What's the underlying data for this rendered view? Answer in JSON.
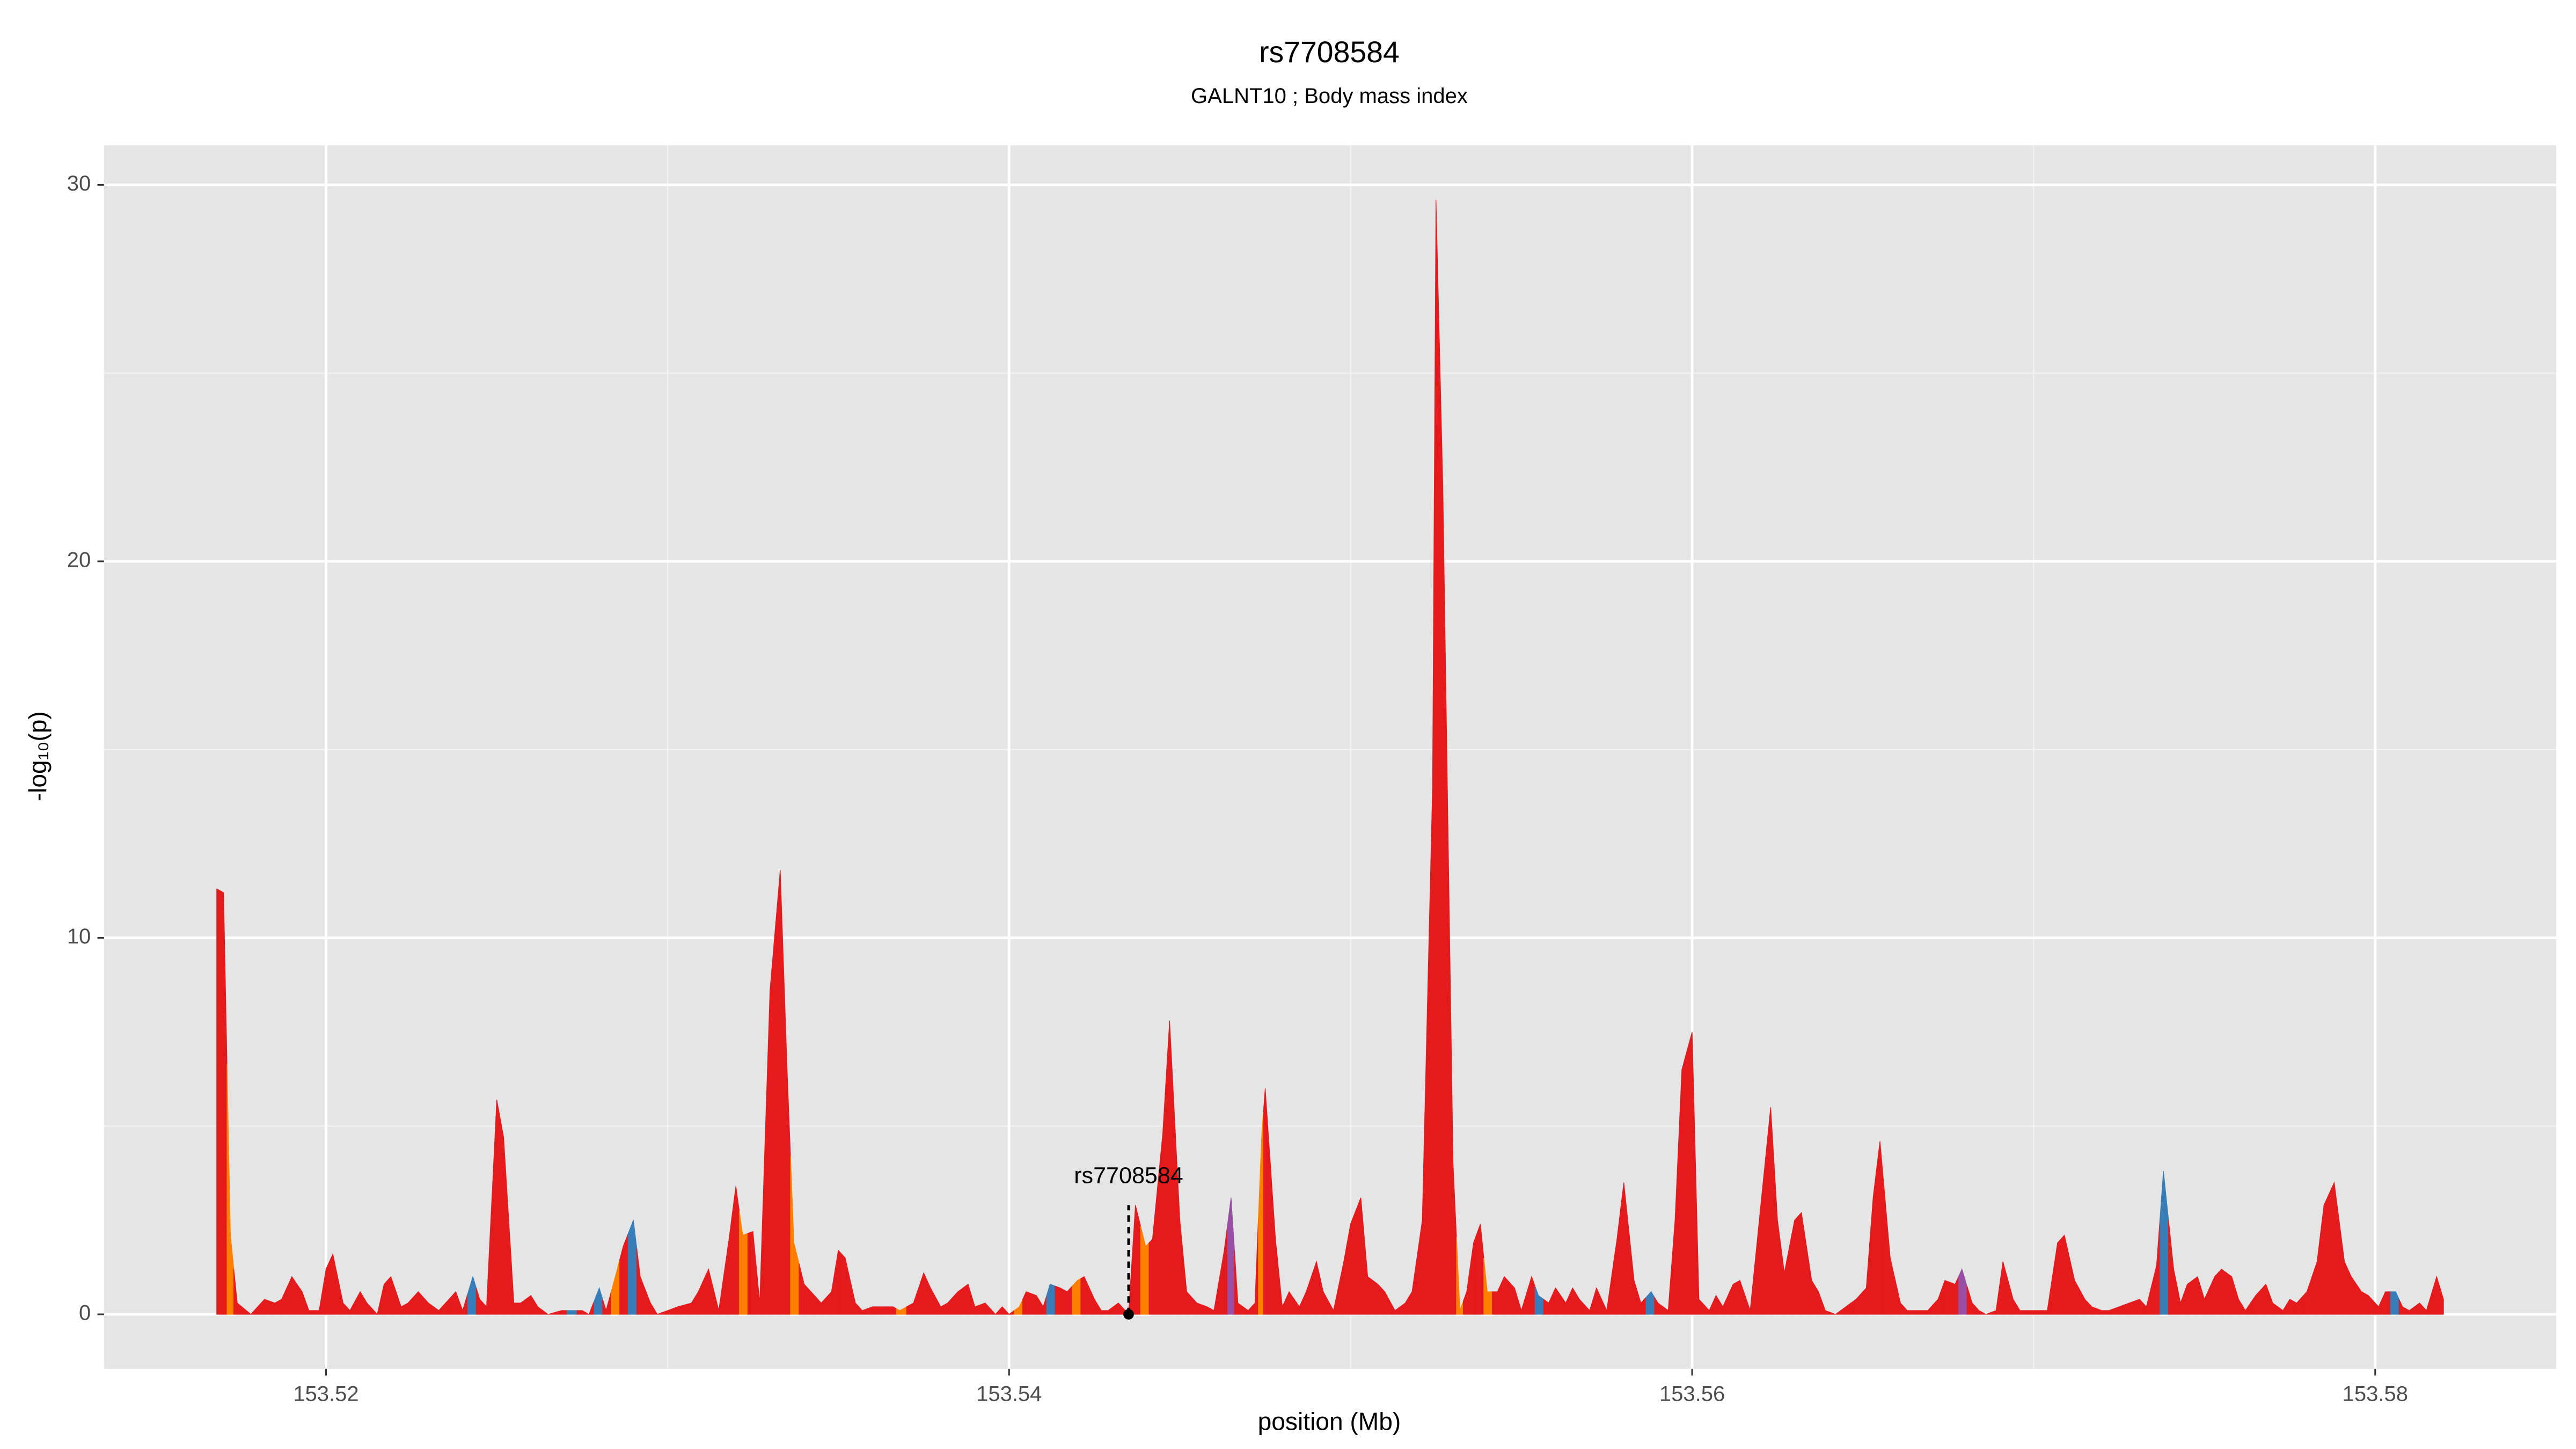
{
  "chart_data": {
    "type": "area",
    "title": "rs7708584",
    "subtitle": "GALNT10 ; Body mass index",
    "xlabel": "position (Mb)",
    "ylabel": "-log₁₀(p)",
    "xlim": [
      153.5135,
      153.5853
    ],
    "ylim": [
      -1.45,
      31.05
    ],
    "xticks": [
      153.52,
      153.54,
      153.56,
      153.58
    ],
    "yticks": [
      0,
      10,
      20,
      30
    ],
    "xminor": [
      153.53,
      153.55,
      153.57
    ],
    "yminor": [
      5,
      15,
      25
    ],
    "grid": true,
    "annotation": {
      "text": "rs7708584",
      "x": 153.5435,
      "y": 2.9
    },
    "x": [
      153.5168,
      153.517,
      153.5172,
      153.5174,
      153.5178,
      153.5182,
      153.5185,
      153.5187,
      153.519,
      153.5193,
      153.5195,
      153.5198,
      153.52,
      153.5202,
      153.5205,
      153.5207,
      153.521,
      153.5212,
      153.5215,
      153.5217,
      153.5219,
      153.5222,
      153.5224,
      153.5227,
      153.523,
      153.5233,
      153.5235,
      153.5238,
      153.524,
      153.5243,
      153.5245,
      153.5247,
      153.525,
      153.5252,
      153.5255,
      153.5257,
      153.526,
      153.5262,
      153.5265,
      153.5269,
      153.5272,
      153.5275,
      153.5277,
      153.528,
      153.5282,
      153.5285,
      153.5287,
      153.529,
      153.5292,
      153.5295,
      153.5297,
      153.53,
      153.5303,
      153.5307,
      153.5309,
      153.5312,
      153.5315,
      153.5318,
      153.532,
      153.5322,
      153.5325,
      153.5327,
      153.533,
      153.5333,
      153.5335,
      153.5337,
      153.534,
      153.5343,
      153.5345,
      153.5348,
      153.535,
      153.5352,
      153.5355,
      153.5357,
      153.536,
      153.5363,
      153.5366,
      153.5368,
      153.5372,
      153.5375,
      153.5377,
      153.538,
      153.5382,
      153.5385,
      153.5388,
      153.539,
      153.5393,
      153.5396,
      153.5398,
      153.54,
      153.5403,
      153.5405,
      153.5408,
      153.541,
      153.5412,
      153.5415,
      153.5417,
      153.542,
      153.5422,
      153.5425,
      153.5427,
      153.5429,
      153.5432,
      153.5435,
      153.5437,
      153.544,
      153.5442,
      153.5445,
      153.5447,
      153.545,
      153.5452,
      153.5455,
      153.5458,
      153.546,
      153.5463,
      153.5465,
      153.5467,
      153.547,
      153.5472,
      153.5474,
      153.5475,
      153.5478,
      153.548,
      153.5482,
      153.5485,
      153.5487,
      153.549,
      153.5492,
      153.5495,
      153.5498,
      153.55,
      153.5503,
      153.5505,
      153.5508,
      153.551,
      153.5513,
      153.5516,
      153.5518,
      153.5521,
      153.5524,
      153.5525,
      153.5527,
      153.553,
      153.5532,
      153.5534,
      153.5536,
      153.5538,
      153.554,
      153.5543,
      153.5545,
      153.5548,
      153.555,
      153.5553,
      153.5555,
      153.5558,
      153.556,
      153.5563,
      153.5565,
      153.5567,
      153.557,
      153.5572,
      153.5575,
      153.5578,
      153.558,
      153.5583,
      153.5585,
      153.5588,
      153.559,
      153.5593,
      153.5595,
      153.5597,
      153.56,
      153.5602,
      153.5605,
      153.5607,
      153.5609,
      153.5612,
      153.5614,
      153.5617,
      153.562,
      153.5623,
      153.5625,
      153.5627,
      153.563,
      153.5632,
      153.5635,
      153.5637,
      153.5639,
      153.5642,
      153.5645,
      153.5648,
      153.5651,
      153.5653,
      153.5655,
      153.5658,
      153.5661,
      153.5663,
      153.5666,
      153.5669,
      153.5672,
      153.5674,
      153.5677,
      153.5679,
      153.5682,
      153.5684,
      153.5686,
      153.5689,
      153.5691,
      153.5694,
      153.5696,
      153.5699,
      153.5701,
      153.5704,
      153.5707,
      153.5709,
      153.5712,
      153.5715,
      153.5717,
      153.572,
      153.5722,
      153.5725,
      153.5728,
      153.5731,
      153.5733,
      153.5736,
      153.5738,
      153.5741,
      153.5743,
      153.5745,
      153.5748,
      153.575,
      153.5753,
      153.5755,
      153.5758,
      153.576,
      153.5762,
      153.5765,
      153.5768,
      153.577,
      153.5773,
      153.5775,
      153.5777,
      153.578,
      153.5783,
      153.5785,
      153.5788,
      153.5791,
      153.5793,
      153.5796,
      153.5798,
      153.5801,
      153.5803,
      153.5806,
      153.5808,
      153.581,
      153.5813,
      153.5815,
      153.5818,
      153.582
    ],
    "values": [
      11.3,
      11.2,
      2.1,
      0.3,
      0,
      0.4,
      0.3,
      0.4,
      1.0,
      0.6,
      0.1,
      0.1,
      1.2,
      1.6,
      0.3,
      0.1,
      0.6,
      0.3,
      0,
      0.8,
      1.0,
      0.2,
      0.3,
      0.6,
      0.3,
      0.1,
      0.3,
      0.6,
      0.1,
      1.0,
      0.4,
      0.2,
      5.7,
      4.7,
      0.3,
      0.3,
      0.5,
      0.2,
      0,
      0.1,
      0.1,
      0.1,
      0,
      0.7,
      0.1,
      1.1,
      1.8,
      2.5,
      1.0,
      0.3,
      0,
      0.1,
      0.2,
      0.3,
      0.6,
      1.2,
      0.1,
      2.0,
      3.4,
      2.1,
      2.2,
      0.3,
      8.6,
      11.8,
      6.5,
      1.9,
      0.8,
      0.5,
      0.3,
      0.6,
      1.7,
      1.5,
      0.3,
      0.1,
      0.2,
      0.2,
      0.2,
      0.1,
      0.3,
      1.1,
      0.7,
      0.2,
      0.3,
      0.6,
      0.8,
      0.2,
      0.3,
      0,
      0.2,
      0,
      0.2,
      0.6,
      0.5,
      0.2,
      0.8,
      0.7,
      0.6,
      0.9,
      1.0,
      0.4,
      0.1,
      0.1,
      0.3,
      0,
      2.9,
      1.8,
      2.0,
      4.8,
      7.8,
      2.5,
      0.6,
      0.3,
      0.2,
      0.1,
      1.7,
      3.1,
      0.3,
      0.1,
      0.3,
      4.8,
      6.0,
      2.0,
      0.2,
      0.6,
      0.2,
      0.6,
      1.4,
      0.6,
      0.1,
      1.4,
      2.4,
      3.1,
      1.0,
      0.8,
      0.6,
      0.1,
      0.3,
      0.6,
      2.5,
      14,
      29.6,
      22,
      4.0,
      0.1,
      0.6,
      1.9,
      2.4,
      0.6,
      0.6,
      1.0,
      0.7,
      0.1,
      1.0,
      0.5,
      0.3,
      0.7,
      0.3,
      0.7,
      0.4,
      0.1,
      0.7,
      0.1,
      2.0,
      3.5,
      0.9,
      0.3,
      0.6,
      0.3,
      0.1,
      2.5,
      6.5,
      7.5,
      0.4,
      0.1,
      0.5,
      0.2,
      0.8,
      0.9,
      0.1,
      2.8,
      5.5,
      2.5,
      1.1,
      2.5,
      2.7,
      0.9,
      0.6,
      0.1,
      0,
      0.2,
      0.4,
      0.7,
      3.1,
      4.6,
      1.5,
      0.3,
      0.1,
      0.1,
      0.1,
      0.4,
      0.9,
      0.8,
      1.2,
      0.3,
      0.1,
      0,
      0.1,
      1.4,
      0.4,
      0.1,
      0.1,
      0.1,
      0.1,
      1.9,
      2.1,
      0.9,
      0.4,
      0.2,
      0.1,
      0.1,
      0.2,
      0.3,
      0.4,
      0.2,
      1.3,
      3.8,
      1.2,
      0.3,
      0.8,
      1.0,
      0.4,
      1.0,
      1.2,
      1.0,
      0.4,
      0.1,
      0.5,
      0.8,
      0.3,
      0.1,
      0.4,
      0.3,
      0.6,
      1.4,
      2.9,
      3.5,
      1.4,
      1.0,
      0.6,
      0.5,
      0.2,
      0.6,
      0.6,
      0.2,
      0.1,
      0.3,
      0.1,
      1.0,
      0.4
    ],
    "colors": [
      "#e41a1c",
      "#e41a1c",
      "#ff7f00",
      "#e41a1c",
      "#e41a1c",
      "#e41a1c",
      "#e41a1c",
      "#e41a1c",
      "#e41a1c",
      "#e41a1c",
      "#e41a1c",
      "#e41a1c",
      "#e41a1c",
      "#e41a1c",
      "#e41a1c",
      "#e41a1c",
      "#e41a1c",
      "#e41a1c",
      "#e41a1c",
      "#e41a1c",
      "#e41a1c",
      "#e41a1c",
      "#e41a1c",
      "#e41a1c",
      "#e41a1c",
      "#e41a1c",
      "#e41a1c",
      "#e41a1c",
      "#e41a1c",
      "#377eb8",
      "#e41a1c",
      "#e41a1c",
      "#e41a1c",
      "#e41a1c",
      "#e41a1c",
      "#e41a1c",
      "#e41a1c",
      "#e41a1c",
      "#e41a1c",
      "#e41a1c",
      "#377eb8",
      "#e41a1c",
      "#e41a1c",
      "#377eb8",
      "#e41a1c",
      "#ff7f00",
      "#e41a1c",
      "#377eb8",
      "#e41a1c",
      "#e41a1c",
      "#e41a1c",
      "#e41a1c",
      "#e41a1c",
      "#e41a1c",
      "#e41a1c",
      "#e41a1c",
      "#e41a1c",
      "#e41a1c",
      "#e41a1c",
      "#ff7f00",
      "#e41a1c",
      "#e41a1c",
      "#e41a1c",
      "#e41a1c",
      "#e41a1c",
      "#ff7f00",
      "#e41a1c",
      "#e41a1c",
      "#e41a1c",
      "#e41a1c",
      "#e41a1c",
      "#e41a1c",
      "#e41a1c",
      "#e41a1c",
      "#e41a1c",
      "#e41a1c",
      "#e41a1c",
      "#ff7f00",
      "#e41a1c",
      "#e41a1c",
      "#e41a1c",
      "#e41a1c",
      "#e41a1c",
      "#e41a1c",
      "#e41a1c",
      "#e41a1c",
      "#e41a1c",
      "#e41a1c",
      "#e41a1c",
      "#e41a1c",
      "#ff7f00",
      "#e41a1c",
      "#e41a1c",
      "#e41a1c",
      "#377eb8",
      "#e41a1c",
      "#e41a1c",
      "#ff7f00",
      "#e41a1c",
      "#e41a1c",
      "#e41a1c",
      "#e41a1c",
      "#e41a1c",
      "#e41a1c",
      "#e41a1c",
      "#ff7f00",
      "#e41a1c",
      "#e41a1c",
      "#e41a1c",
      "#e41a1c",
      "#e41a1c",
      "#e41a1c",
      "#e41a1c",
      "#e41a1c",
      "#e41a1c",
      "#984ea3",
      "#e41a1c",
      "#e41a1c",
      "#e41a1c",
      "#ff7f00",
      "#e41a1c",
      "#e41a1c",
      "#e41a1c",
      "#e41a1c",
      "#e41a1c",
      "#e41a1c",
      "#e41a1c",
      "#e41a1c",
      "#e41a1c",
      "#e41a1c",
      "#e41a1c",
      "#e41a1c",
      "#e41a1c",
      "#e41a1c",
      "#e41a1c",
      "#e41a1c",
      "#e41a1c",
      "#e41a1c",
      "#e41a1c",
      "#e41a1c",
      "#e41a1c",
      "#e41a1c",
      "#e41a1c",
      "#ff7f00",
      "#e41a1c",
      "#e41a1c",
      "#e41a1c",
      "#ff7f00",
      "#e41a1c",
      "#e41a1c",
      "#e41a1c",
      "#e41a1c",
      "#e41a1c",
      "#377eb8",
      "#e41a1c",
      "#e41a1c",
      "#e41a1c",
      "#e41a1c",
      "#e41a1c",
      "#e41a1c",
      "#e41a1c",
      "#e41a1c",
      "#e41a1c",
      "#e41a1c",
      "#e41a1c",
      "#e41a1c",
      "#377eb8",
      "#e41a1c",
      "#e41a1c",
      "#e41a1c",
      "#e41a1c",
      "#e41a1c",
      "#e41a1c",
      "#e41a1c",
      "#e41a1c",
      "#e41a1c",
      "#e41a1c",
      "#e41a1c",
      "#e41a1c",
      "#e41a1c",
      "#e41a1c",
      "#e41a1c",
      "#e41a1c",
      "#e41a1c",
      "#e41a1c",
      "#e41a1c",
      "#e41a1c",
      "#e41a1c",
      "#e41a1c",
      "#e41a1c",
      "#e41a1c",
      "#e41a1c",
      "#e41a1c",
      "#e41a1c",
      "#e41a1c",
      "#e41a1c",
      "#e41a1c",
      "#e41a1c",
      "#e41a1c",
      "#e41a1c",
      "#e41a1c",
      "#e41a1c",
      "#984ea3",
      "#e41a1c",
      "#e41a1c",
      "#e41a1c",
      "#e41a1c",
      "#e41a1c",
      "#e41a1c",
      "#e41a1c",
      "#e41a1c",
      "#e41a1c",
      "#e41a1c",
      "#e41a1c",
      "#e41a1c",
      "#e41a1c",
      "#e41a1c",
      "#e41a1c",
      "#e41a1c",
      "#e41a1c",
      "#e41a1c",
      "#e41a1c",
      "#e41a1c",
      "#e41a1c",
      "#e41a1c",
      "#377eb8",
      "#e41a1c",
      "#e41a1c",
      "#e41a1c",
      "#e41a1c",
      "#e41a1c",
      "#e41a1c",
      "#e41a1c",
      "#e41a1c",
      "#e41a1c",
      "#e41a1c",
      "#e41a1c",
      "#e41a1c",
      "#e41a1c",
      "#e41a1c",
      "#e41a1c",
      "#e41a1c",
      "#e41a1c",
      "#e41a1c",
      "#e41a1c",
      "#e41a1c",
      "#e41a1c",
      "#e41a1c",
      "#e41a1c",
      "#e41a1c",
      "#e41a1c",
      "#e41a1c",
      "#377eb8",
      "#e41a1c",
      "#e41a1c",
      "#e41a1c",
      "#e41a1c",
      "#e41a1c",
      "#e41a1c"
    ]
  }
}
